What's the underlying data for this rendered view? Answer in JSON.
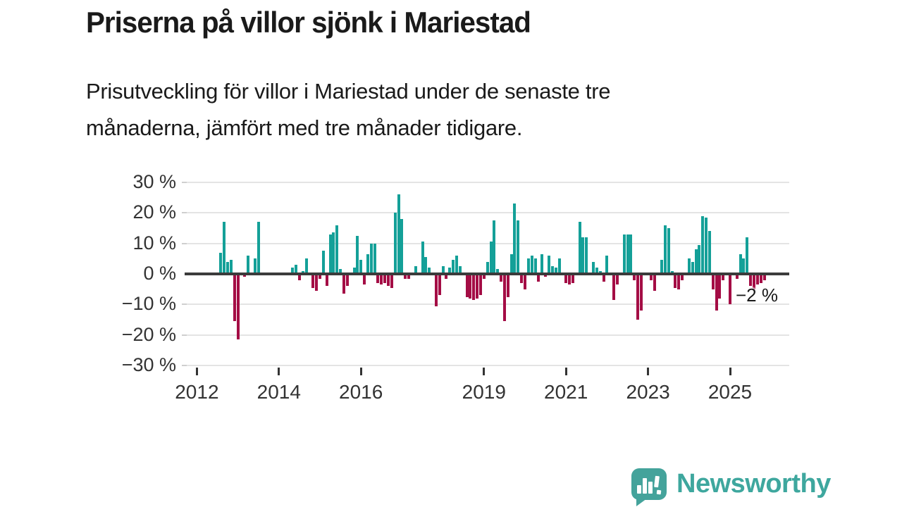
{
  "header": {
    "title": "Priserna på villor sjönk i Mariestad",
    "subtitle_lines": [
      "Prisutveckling för villor i Mariestad under de senaste tre",
      "månaderna, jämfört med tre månader tidigare."
    ]
  },
  "branding": {
    "name": "Newsworthy",
    "logo_icon": "bar-chart-speech-bubble-icon",
    "accent_color": "#3ea79e"
  },
  "chart_data": {
    "type": "bar",
    "title": "Prisutveckling för villor i Mariestad, tre månader jämfört med tre månader tidigare",
    "unit": "%",
    "ylim": [
      -30,
      30
    ],
    "grid": "horizontal",
    "legend": "none",
    "colors": {
      "positive": "#14a098",
      "negative": "#a40d45",
      "zero_line": "#3b3b3b",
      "gridline": "#e4e4e4"
    },
    "yticks": [
      {
        "v": 30,
        "label": "30 %"
      },
      {
        "v": 20,
        "label": "20 %"
      },
      {
        "v": 10,
        "label": "10 %"
      },
      {
        "v": 0,
        "label": "0 %"
      },
      {
        "v": -10,
        "label": "−10 %"
      },
      {
        "v": -20,
        "label": "−20 %"
      },
      {
        "v": -30,
        "label": "−30 %"
      }
    ],
    "xticks": [
      {
        "year": 2012,
        "label": "2012"
      },
      {
        "year": 2014,
        "label": "2014"
      },
      {
        "year": 2016,
        "label": "2016"
      },
      {
        "year": 2019,
        "label": "2019"
      },
      {
        "year": 2021,
        "label": "2021"
      },
      {
        "year": 2023,
        "label": "2023"
      },
      {
        "year": 2025,
        "label": "2025"
      }
    ],
    "annotation": {
      "label": "−2 %",
      "value": -2,
      "month": "2025-11"
    },
    "series": [
      {
        "name": "Prisutveckling villor Mariestad",
        "points": [
          [
            "2012-08",
            7
          ],
          [
            "2012-09",
            17
          ],
          [
            "2012-10",
            4
          ],
          [
            "2012-11",
            4.5
          ],
          [
            "2012-12",
            -15.5
          ],
          [
            "2013-01",
            -21.5
          ],
          [
            "2013-03",
            -1
          ],
          [
            "2013-04",
            6
          ],
          [
            "2013-06",
            5
          ],
          [
            "2013-07",
            17
          ],
          [
            "2014-05",
            2
          ],
          [
            "2014-06",
            3
          ],
          [
            "2014-07",
            -2
          ],
          [
            "2014-08",
            1
          ],
          [
            "2014-09",
            5
          ],
          [
            "2014-11",
            -4.5
          ],
          [
            "2014-12",
            -5.5
          ],
          [
            "2015-01",
            -1.5
          ],
          [
            "2015-02",
            7.5
          ],
          [
            "2015-03",
            -4
          ],
          [
            "2015-04",
            13
          ],
          [
            "2015-05",
            13.5
          ],
          [
            "2015-06",
            16
          ],
          [
            "2015-07",
            1.5
          ],
          [
            "2015-08",
            -6.5
          ],
          [
            "2015-09",
            -4
          ],
          [
            "2015-11",
            2
          ],
          [
            "2015-12",
            12.5
          ],
          [
            "2016-01",
            4.5
          ],
          [
            "2016-02",
            -3.5
          ],
          [
            "2016-03",
            6.5
          ],
          [
            "2016-04",
            10
          ],
          [
            "2016-05",
            10
          ],
          [
            "2016-06",
            -3
          ],
          [
            "2016-07",
            -3.5
          ],
          [
            "2016-08",
            -3
          ],
          [
            "2016-09",
            -4
          ],
          [
            "2016-10",
            -4.5
          ],
          [
            "2016-11",
            20
          ],
          [
            "2016-12",
            26
          ],
          [
            "2017-01",
            18
          ],
          [
            "2017-02",
            -1.5
          ],
          [
            "2017-03",
            -1.5
          ],
          [
            "2017-05",
            2.5
          ],
          [
            "2017-07",
            10.5
          ],
          [
            "2017-08",
            5.5
          ],
          [
            "2017-09",
            2
          ],
          [
            "2017-11",
            -10.5
          ],
          [
            "2017-12",
            -7
          ],
          [
            "2018-01",
            2.5
          ],
          [
            "2018-02",
            -1.5
          ],
          [
            "2018-03",
            2
          ],
          [
            "2018-04",
            4.5
          ],
          [
            "2018-05",
            6
          ],
          [
            "2018-06",
            2.5
          ],
          [
            "2018-08",
            -7.5
          ],
          [
            "2018-09",
            -8
          ],
          [
            "2018-10",
            -8.5
          ],
          [
            "2018-11",
            -8
          ],
          [
            "2018-12",
            -7
          ],
          [
            "2019-01",
            -1.5
          ],
          [
            "2019-02",
            4
          ],
          [
            "2019-03",
            10.5
          ],
          [
            "2019-04",
            17.5
          ],
          [
            "2019-05",
            1.5
          ],
          [
            "2019-06",
            -2.5
          ],
          [
            "2019-07",
            -15.5
          ],
          [
            "2019-08",
            -7.5
          ],
          [
            "2019-09",
            6.5
          ],
          [
            "2019-10",
            23
          ],
          [
            "2019-11",
            17.5
          ],
          [
            "2019-12",
            -3
          ],
          [
            "2020-01",
            -5
          ],
          [
            "2020-02",
            5
          ],
          [
            "2020-03",
            6
          ],
          [
            "2020-04",
            5
          ],
          [
            "2020-05",
            -2.5
          ],
          [
            "2020-06",
            6.5
          ],
          [
            "2020-07",
            -1
          ],
          [
            "2020-08",
            6
          ],
          [
            "2020-09",
            2.5
          ],
          [
            "2020-10",
            2
          ],
          [
            "2020-11",
            5
          ],
          [
            "2021-01",
            -3
          ],
          [
            "2021-02",
            -3.5
          ],
          [
            "2021-03",
            -3
          ],
          [
            "2021-05",
            17
          ],
          [
            "2021-06",
            12
          ],
          [
            "2021-07",
            12
          ],
          [
            "2021-09",
            4
          ],
          [
            "2021-10",
            2
          ],
          [
            "2021-11",
            1
          ],
          [
            "2021-12",
            -2.5
          ],
          [
            "2022-01",
            6
          ],
          [
            "2022-03",
            -8.5
          ],
          [
            "2022-04",
            -3.5
          ],
          [
            "2022-06",
            13
          ],
          [
            "2022-07",
            13
          ],
          [
            "2022-08",
            13
          ],
          [
            "2022-09",
            -2
          ],
          [
            "2022-10",
            -15
          ],
          [
            "2022-11",
            -12
          ],
          [
            "2023-02",
            -2
          ],
          [
            "2023-03",
            -5.5
          ],
          [
            "2023-05",
            4.5
          ],
          [
            "2023-06",
            16
          ],
          [
            "2023-07",
            15
          ],
          [
            "2023-08",
            1
          ],
          [
            "2023-09",
            -4.5
          ],
          [
            "2023-10",
            -5
          ],
          [
            "2023-11",
            -2
          ],
          [
            "2024-01",
            5
          ],
          [
            "2024-02",
            4
          ],
          [
            "2024-03",
            8
          ],
          [
            "2024-04",
            9.5
          ],
          [
            "2024-05",
            19
          ],
          [
            "2024-06",
            18.5
          ],
          [
            "2024-07",
            14
          ],
          [
            "2024-08",
            -5
          ],
          [
            "2024-09",
            -12
          ],
          [
            "2024-10",
            -8
          ],
          [
            "2024-11",
            -2
          ],
          [
            "2025-01",
            -10
          ],
          [
            "2025-03",
            -1.5
          ],
          [
            "2025-04",
            6.5
          ],
          [
            "2025-05",
            5
          ],
          [
            "2025-06",
            12
          ],
          [
            "2025-07",
            -4
          ],
          [
            "2025-08",
            -5
          ],
          [
            "2025-09",
            -3.5
          ],
          [
            "2025-10",
            -3
          ],
          [
            "2025-11",
            -2
          ]
        ]
      }
    ]
  }
}
